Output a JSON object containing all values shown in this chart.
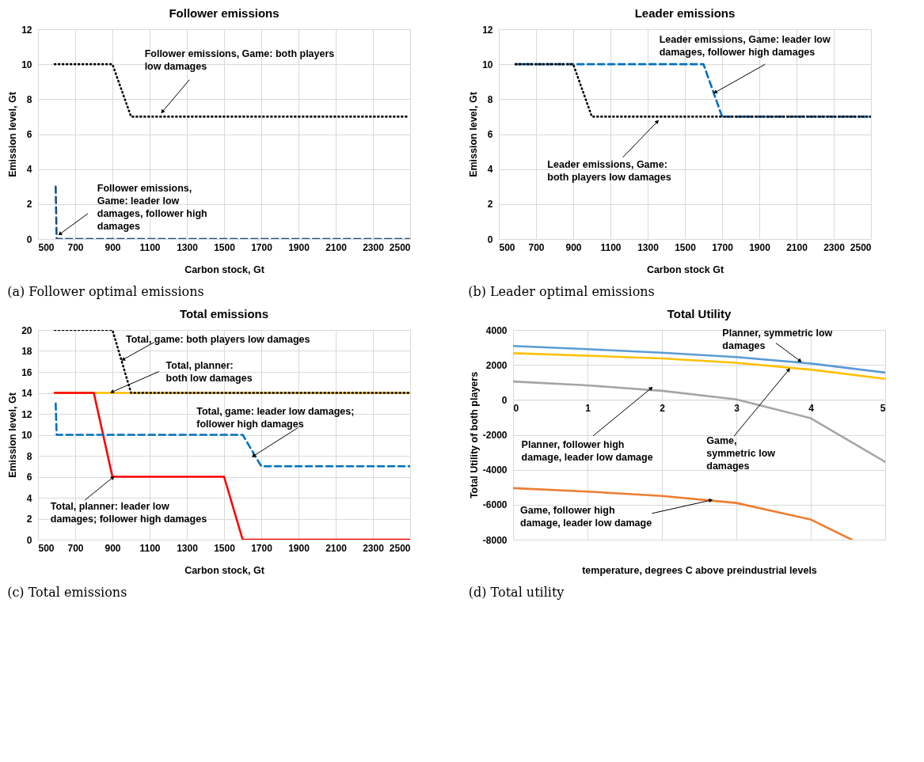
{
  "chart_data": [
    {
      "type": "line",
      "title": "Follower emissions",
      "xlabel": "Carbon stock, Gt",
      "ylabel": "Emission level, Gt",
      "xlim": [
        500,
        2500
      ],
      "xticks": [
        500,
        700,
        900,
        1100,
        1300,
        1500,
        1700,
        1900,
        2100,
        2300,
        2500
      ],
      "ylim": [
        0,
        12
      ],
      "yticks": [
        0,
        2,
        4,
        6,
        8,
        10,
        12
      ],
      "grid": true,
      "series": [
        {
          "color": "#000000",
          "line_style": "dotted",
          "x": [
            590,
            900,
            1000,
            2490
          ],
          "values": [
            10,
            10,
            7,
            7
          ]
        },
        {
          "color": "#1f4e79",
          "line_style": "dashed",
          "x": [
            595,
            600,
            2500
          ],
          "values": [
            3,
            0,
            0
          ]
        }
      ],
      "annotations": [
        {
          "text": "Follower emissions, Game: both players low damages",
          "x": 1170,
          "y": 7.3
        },
        {
          "text": "Follower emissions, Game: leader low damages, follower high damages",
          "x": 620,
          "y": 0.3
        },
        "(a) Follower optimal emissions"
      ]
    },
    {
      "type": "line",
      "title": "Leader emissions",
      "xlabel": "Carbon stock Gt",
      "ylabel": "Emission level, Gt",
      "xlim": [
        500,
        2500
      ],
      "xticks": [
        500,
        700,
        900,
        1100,
        1300,
        1500,
        1700,
        1900,
        2100,
        2300,
        2500
      ],
      "ylim": [
        0,
        12
      ],
      "yticks": [
        0,
        2,
        4,
        6,
        8,
        10,
        12
      ],
      "grid": true,
      "series": [
        {
          "color": "#0070c0",
          "line_style": "dashed",
          "x": [
            590,
            1600,
            1700,
            2500
          ],
          "values": [
            10,
            10,
            7,
            7
          ]
        },
        {
          "color": "#000000",
          "line_style": "dotted",
          "x": [
            590,
            900,
            1000,
            2500
          ],
          "values": [
            10,
            10,
            7,
            7
          ]
        }
      ],
      "annotations": [
        {
          "text": "Leader emissions, Game: leader low damages, follower high damages",
          "x": 1665,
          "y": 8.4
        },
        {
          "text": "Leader emissions, Game: both players low damages",
          "x": 1350,
          "y": 6.7
        },
        "(b) Leader optimal emissions"
      ]
    },
    {
      "type": "line",
      "title": "Total emissions",
      "xlabel": "Carbon stock, Gt",
      "ylabel": "Emission level, Gt",
      "xlim": [
        500,
        2500
      ],
      "xticks": [
        500,
        700,
        900,
        1100,
        1300,
        1500,
        1700,
        1900,
        2100,
        2300,
        2500
      ],
      "ylim": [
        0,
        20
      ],
      "yticks": [
        0,
        2,
        4,
        6,
        8,
        10,
        12,
        14,
        16,
        18,
        20
      ],
      "grid": true,
      "series": [
        {
          "color": "#ffc000",
          "line_style": "solid",
          "x": [
            590,
            2500
          ],
          "values": [
            14,
            14
          ]
        },
        {
          "color": "#ff0000",
          "line_style": "solid",
          "x": [
            590,
            800,
            900,
            1500,
            1600,
            2500
          ],
          "values": [
            14,
            14,
            6,
            6,
            0,
            0
          ]
        },
        {
          "color": "#0070c0",
          "line_style": "dashed",
          "x": [
            595,
            600,
            1600,
            1700,
            2500
          ],
          "values": [
            13,
            10,
            10,
            7,
            7
          ]
        },
        {
          "color": "#000000",
          "line_style": "dotted",
          "x": [
            590,
            900,
            1000,
            2500
          ],
          "values": [
            20,
            20,
            14,
            14
          ]
        }
      ],
      "annotations": [
        {
          "text": "Total, game: both players low damages",
          "x": 960,
          "y": 17.2
        },
        {
          "text": "Total, planner: both low damages",
          "x": 900,
          "y": 14.1
        },
        {
          "text": "Total, game: leader low damages; follower high damages",
          "x": 1660,
          "y": 8
        },
        {
          "text": "Total, planner: leader low damages; follower high damages",
          "x": 900,
          "y": 5.9
        },
        "(c) Total emissions"
      ]
    },
    {
      "type": "line",
      "title": "Total Utility",
      "xlabel": "temperature, degrees C above preindustrial levels",
      "ylabel": "Total Utility of both players",
      "xlim": [
        0,
        5
      ],
      "xticks": [
        0,
        1,
        2,
        3,
        4,
        5
      ],
      "ylim": [
        -8000,
        4000
      ],
      "yticks": [
        -8000,
        -6000,
        -4000,
        -2000,
        0,
        2000,
        4000
      ],
      "grid": true,
      "series": [
        {
          "color": "#5b9bd5",
          "line_style": "solid",
          "x": [
            0,
            1,
            2,
            3,
            4,
            5
          ],
          "values": [
            3080,
            2900,
            2700,
            2450,
            2080,
            1560
          ]
        },
        {
          "color": "#ffc000",
          "line_style": "solid",
          "x": [
            0,
            1,
            2,
            3,
            4,
            5
          ],
          "values": [
            2670,
            2530,
            2370,
            2120,
            1730,
            1200
          ]
        },
        {
          "color": "#a5a5a5",
          "line_style": "solid",
          "x": [
            0,
            1,
            2,
            3,
            4,
            5
          ],
          "values": [
            1050,
            830,
            520,
            30,
            -1050,
            -3550
          ]
        },
        {
          "color": "#ed7d31",
          "line_style": "solid",
          "x": [
            0,
            1,
            2,
            3,
            4,
            4.55
          ],
          "values": [
            -5050,
            -5250,
            -5500,
            -5900,
            -6850,
            -8000
          ]
        }
      ],
      "annotations": [
        {
          "text": "Planner, symmetric low damages",
          "x": 3.85,
          "y": 2250
        },
        {
          "text": "Planner, follower high damage, leader low damage",
          "x": 1.85,
          "y": 650
        },
        {
          "text": "Game, symmetric low damages",
          "x": 3.7,
          "y": 1700
        },
        {
          "text": "Game, follower high damage, leader low damage",
          "x": 2.65,
          "y": -5750
        },
        "(d) Total utility"
      ]
    }
  ]
}
